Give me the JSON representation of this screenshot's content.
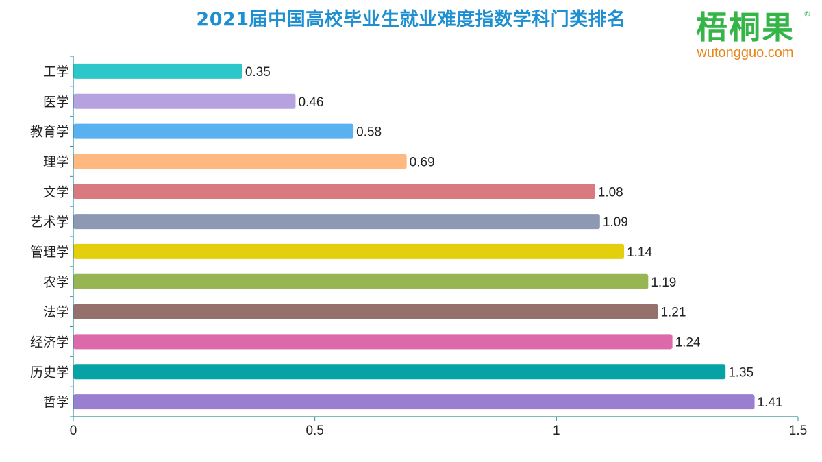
{
  "chart_data": {
    "type": "bar",
    "orientation": "horizontal",
    "title": "2021届中国高校毕业生就业难度指数学科门类排名",
    "categories": [
      "工学",
      "医学",
      "教育学",
      "理学",
      "文学",
      "艺术学",
      "管理学",
      "农学",
      "法学",
      "经济学",
      "历史学",
      "哲学"
    ],
    "values": [
      0.35,
      0.46,
      0.58,
      0.69,
      1.08,
      1.09,
      1.14,
      1.19,
      1.21,
      1.24,
      1.35,
      1.41
    ],
    "value_labels": [
      "0.35",
      "0.46",
      "0.58",
      "0.69",
      "1.08",
      "1.09",
      "1.14",
      "1.19",
      "1.21",
      "1.24",
      "1.35",
      "1.41"
    ],
    "colors": [
      "#2ec7c9",
      "#b6a2de",
      "#5ab1ef",
      "#ffb980",
      "#d87a80",
      "#8d98b3",
      "#e5cf0d",
      "#97b552",
      "#95706d",
      "#dc69aa",
      "#07a2a4",
      "#9a7fd1"
    ],
    "xlim": [
      0,
      1.5
    ],
    "xticks": [
      0,
      0.5,
      1,
      1.5
    ],
    "xtick_labels": [
      "0",
      "0.5",
      "1",
      "1.5"
    ],
    "xlabel": "",
    "ylabel": "",
    "grid": false,
    "axis_color": "#2f8f9d"
  },
  "logo": {
    "name": "梧桐果",
    "url": "wutongguo.com",
    "registered": "®"
  }
}
